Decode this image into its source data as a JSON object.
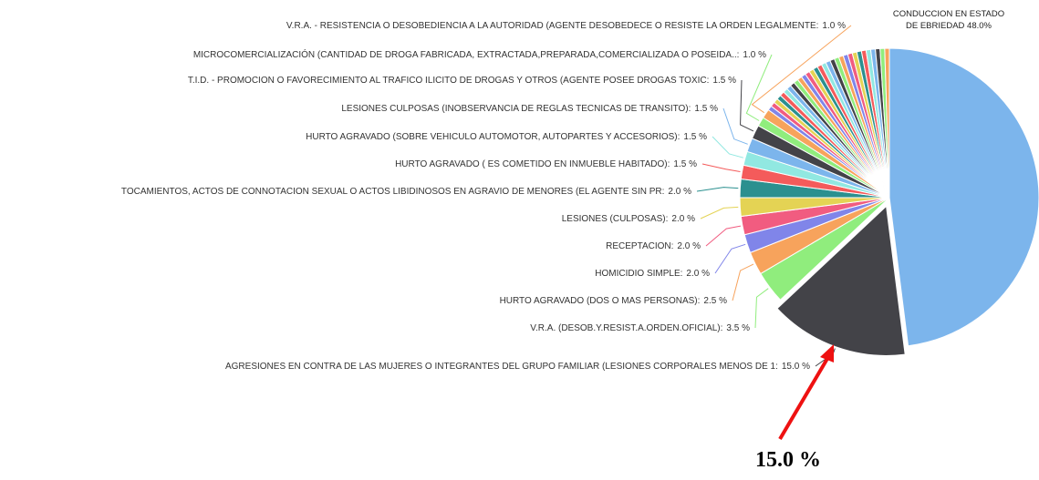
{
  "chart_data": {
    "type": "pie",
    "categories": [
      "CONDUCCION EN ESTADO DE EBRIEDAD",
      "AGRESIONES EN CONTRA DE LAS MUJERES O INTEGRANTES DEL GRUPO FAMILIAR (LESIONES CORPORALES MENOS DE 1:",
      "V.R.A. (DESOB.Y.RESIST.A.ORDEN.OFICIAL):",
      "HURTO AGRAVADO (DOS O MAS PERSONAS):",
      "HOMICIDIO SIMPLE:",
      "RECEPTACION:",
      "LESIONES (CULPOSAS):",
      "TOCAMIENTOS, ACTOS DE CONNOTACION SEXUAL O ACTOS LIBIDINOSOS EN AGRAVIO DE MENORES (EL AGENTE SIN PR:",
      "HURTO AGRAVADO ( ES COMETIDO EN INMUEBLE HABITADO):",
      "HURTO AGRAVADO (SOBRE VEHICULO AUTOMOTOR, AUTOPARTES Y ACCESORIOS):",
      "LESIONES CULPOSAS (INOBSERVANCIA DE REGLAS TECNICAS DE TRANSITO):",
      "T.I.D. - PROMOCION O FAVORECIMIENTO AL TRAFICO ILICITO DE DROGAS Y OTROS (AGENTE POSEE DROGAS TOXIC:",
      "MICROCOMERCIALIZACIÓN (CANTIDAD DE DROGA FABRICADA, EXTRACTADA,PREPARADA,COMERCIALIZADA O POSEIDA..:",
      "V.R.A. - RESISTENCIA O DESOBEDIENCIA A LA AUTORIDAD (AGENTE DESOBEDECE O RESISTE LA ORDEN LEGALMENTE:",
      null,
      null,
      null,
      null,
      null,
      null,
      null,
      null,
      null,
      null,
      null,
      null,
      null,
      null,
      null,
      null,
      null,
      null,
      null,
      null,
      null,
      null,
      null,
      null,
      null,
      null,
      null,
      null,
      null,
      null
    ],
    "values": [
      48.0,
      15.0,
      3.5,
      2.5,
      2.0,
      2.0,
      2.0,
      2.0,
      1.5,
      1.5,
      1.5,
      1.5,
      1.0,
      1.0,
      0.5,
      0.5,
      0.5,
      0.5,
      0.5,
      0.5,
      0.5,
      0.5,
      0.5,
      0.5,
      0.5,
      0.5,
      0.5,
      0.5,
      0.5,
      0.5,
      0.5,
      0.5,
      0.5,
      0.5,
      0.5,
      0.5,
      0.5,
      0.5,
      0.5,
      0.5,
      0.5,
      0.5,
      0.5,
      0.5
    ],
    "value_labels": [
      "48.0%",
      "15.0 %",
      "3.5 %",
      "2.5 %",
      "2.0 %",
      "2.0 %",
      "2.0 %",
      "2.0 %",
      "1.5 %",
      "1.5 %",
      "1.5 %",
      "1.5 %",
      "1.0 %",
      "1.0 %",
      null,
      null,
      null,
      null,
      null,
      null,
      null,
      null,
      null,
      null,
      null,
      null,
      null,
      null,
      null,
      null,
      null,
      null,
      null,
      null,
      null,
      null,
      null,
      null,
      null,
      null,
      null,
      null,
      null,
      null
    ],
    "colors": [
      "#7cb5ec",
      "#434348",
      "#90ed7d",
      "#f7a35c",
      "#8085e9",
      "#f15c80",
      "#e4d354",
      "#2b908f",
      "#f45b5b",
      "#91e8e1"
    ],
    "annotation": "15.0 %"
  }
}
